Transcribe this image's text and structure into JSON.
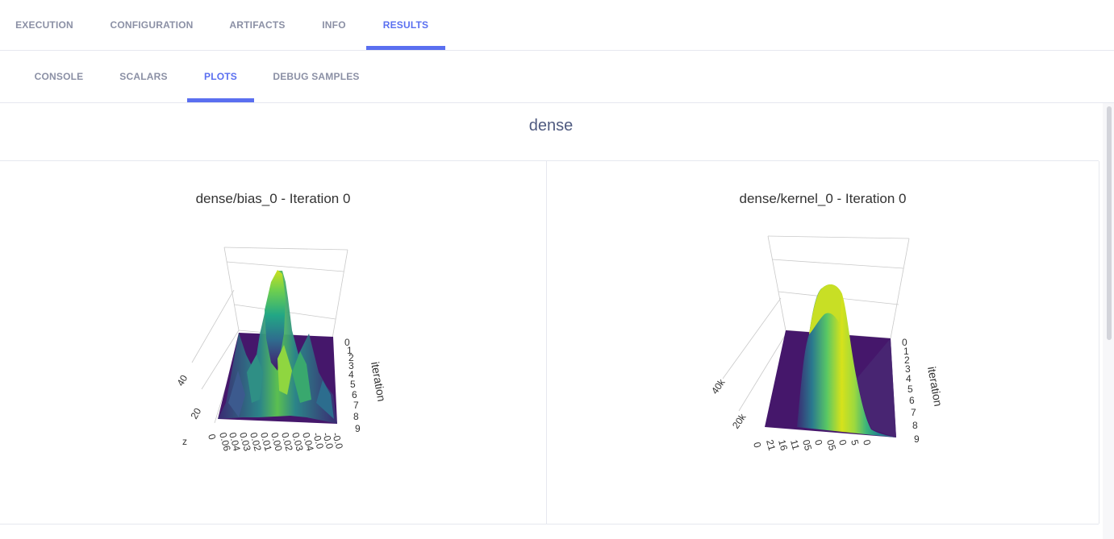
{
  "top_tabs": [
    "EXECUTION",
    "CONFIGURATION",
    "ARTIFACTS",
    "INFO",
    "RESULTS"
  ],
  "top_active_tab": "RESULTS",
  "sub_tabs": [
    "CONSOLE",
    "SCALARS",
    "PLOTS",
    "DEBUG SAMPLES"
  ],
  "sub_active_tab": "PLOTS",
  "section_title": "dense",
  "colors": {
    "accent": "#5a6ff0",
    "tab_inactive": "#8b90a5",
    "border": "#e6e8ef"
  },
  "plots": [
    {
      "title": "dense/bias_0 - Iteration 0",
      "z_axis_label": "z",
      "z_ticks": [
        "20",
        "40"
      ],
      "x_ticks": [
        "0",
        "0.06",
        "0.04",
        "0.03",
        "0.02",
        "0.01",
        "0.00",
        "0.02",
        "0.03",
        "0.04",
        "-0.0",
        "-0.0",
        "-0.0"
      ],
      "iteration_label": "iteration",
      "iteration_ticks": [
        "0",
        "1",
        "2",
        "3",
        "4",
        "5",
        "6",
        "7",
        "8",
        "9"
      ]
    },
    {
      "title": "dense/kernel_0 - Iteration 0",
      "z_ticks": [
        "20k",
        "40k"
      ],
      "x_ticks": [
        "0",
        "21",
        "16",
        "11",
        "05",
        "0",
        "05",
        "0",
        "5",
        "0"
      ],
      "iteration_label": "iteration",
      "iteration_ticks": [
        "0",
        "1",
        "2",
        "3",
        "4",
        "5",
        "6",
        "7",
        "8",
        "9"
      ]
    }
  ],
  "chart_data": [
    {
      "type": "surface3d",
      "title": "dense/bias_0 - Iteration 0",
      "axes": {
        "x": "",
        "y": "iteration",
        "z": "z"
      },
      "y_values": [
        0,
        1,
        2,
        3,
        4,
        5,
        6,
        7,
        8,
        9
      ],
      "z_ticks": [
        20,
        40
      ],
      "x_tick_labels": [
        "0",
        "0.06",
        "0.04",
        "0.03",
        "0.02",
        "0.01",
        "0.00",
        "0.02",
        "0.03",
        "0.04",
        "-0.0",
        "-0.0",
        "-0.0"
      ],
      "colorscale": "viridis"
    },
    {
      "type": "surface3d",
      "title": "dense/kernel_0 - Iteration 0",
      "axes": {
        "x": "",
        "y": "iteration",
        "z": ""
      },
      "y_values": [
        0,
        1,
        2,
        3,
        4,
        5,
        6,
        7,
        8,
        9
      ],
      "z_ticks": [
        "20k",
        "40k"
      ],
      "x_tick_labels": [
        "0",
        "21",
        "16",
        "11",
        "05",
        "0",
        "05",
        "0",
        "5",
        "0"
      ],
      "colorscale": "viridis"
    }
  ]
}
